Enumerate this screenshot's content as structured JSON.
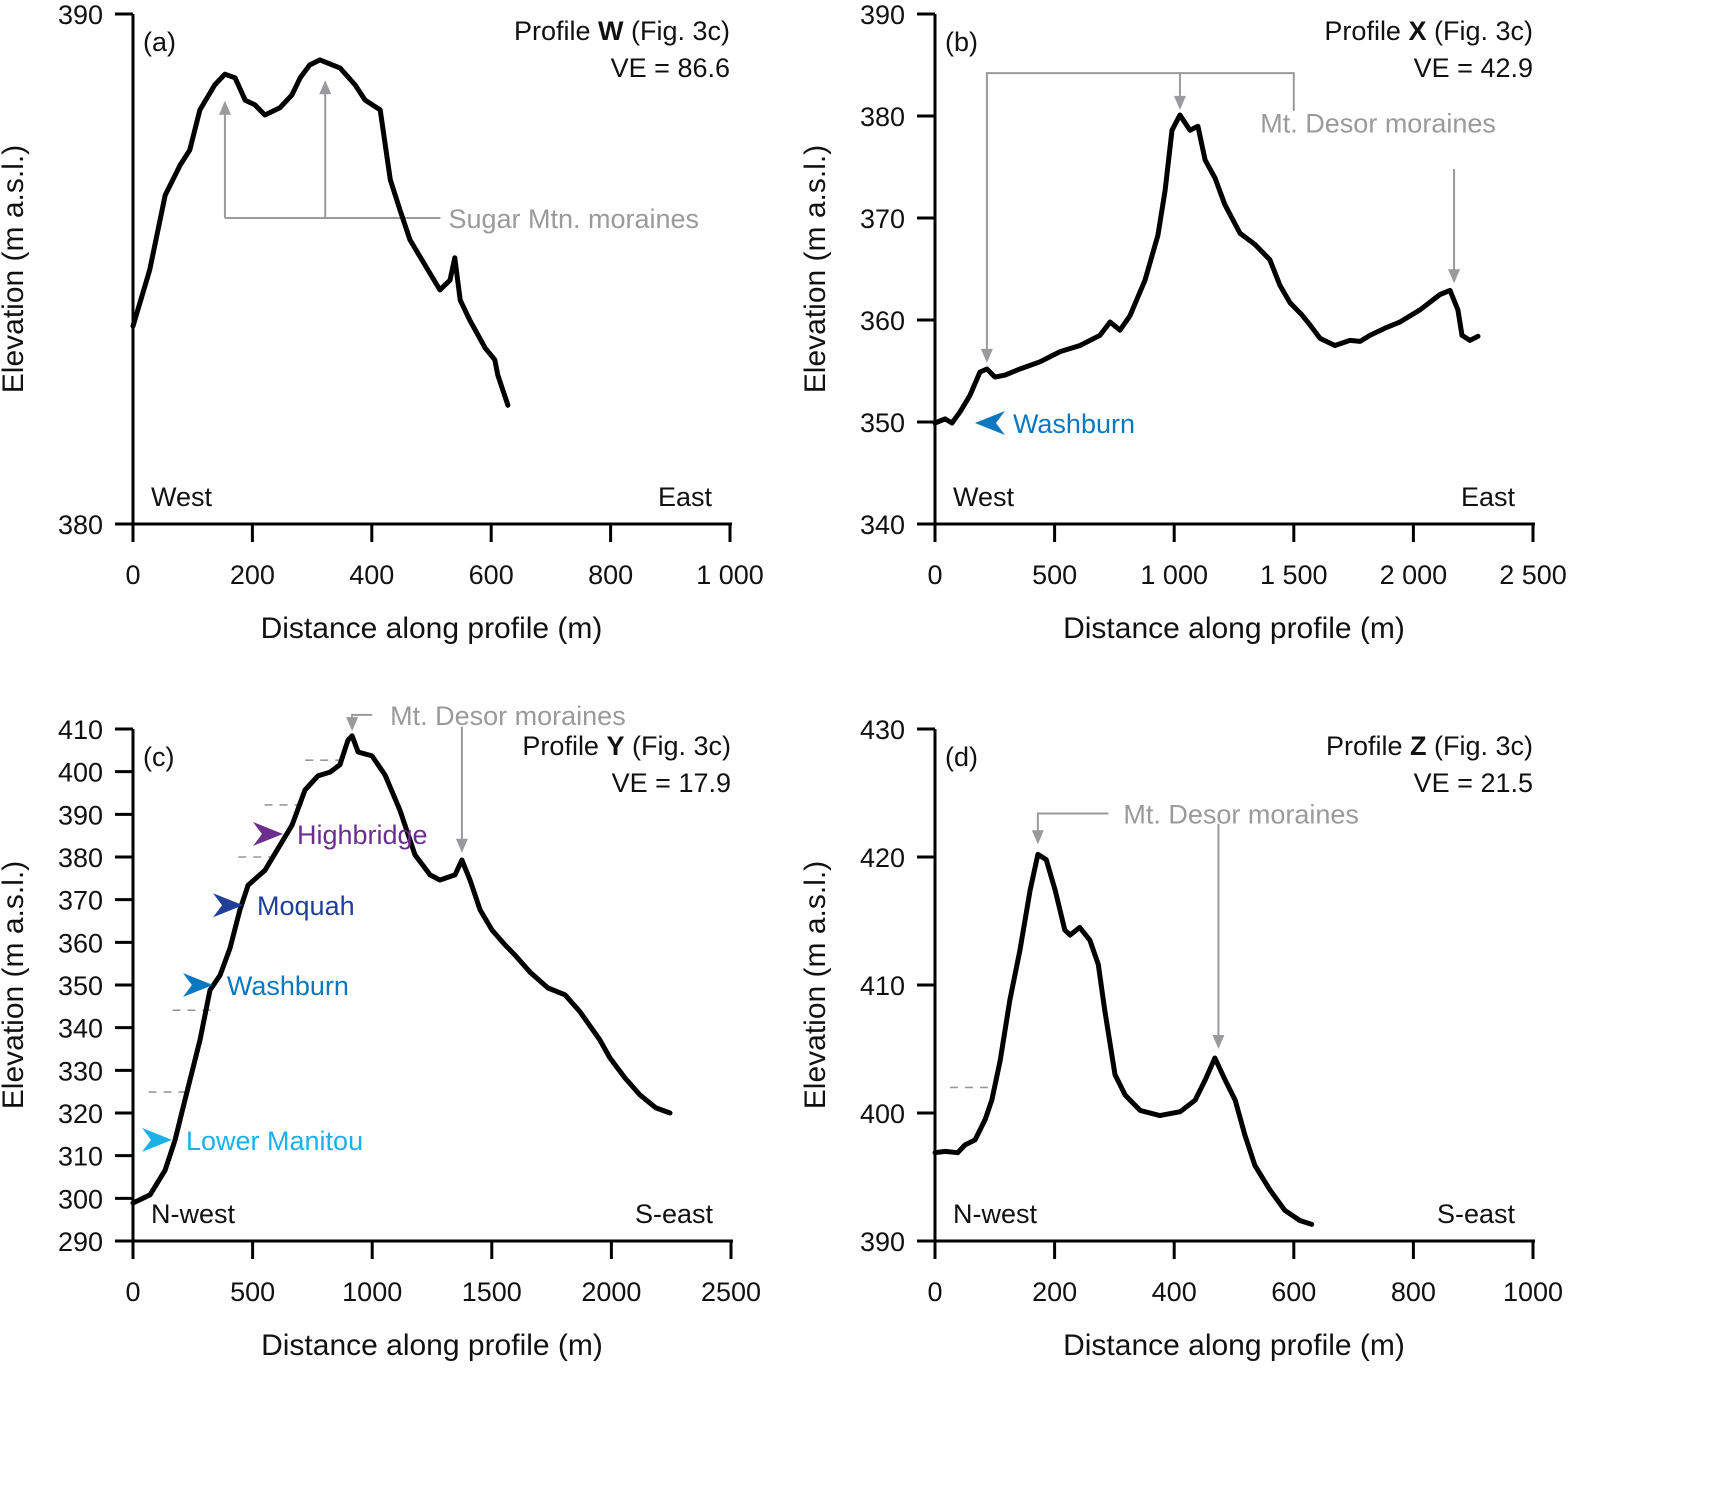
{
  "figure": {
    "colors": {
      "profile_line": "#000000",
      "annotation": "#9a9a9c",
      "dashed": "#9a9a9c",
      "lower_manitou": "#1ab0e8",
      "washburn": "#0a78c0",
      "moquah": "#1f3f99",
      "highbridge": "#6b2e8f"
    }
  },
  "chart_data": [
    {
      "type": "line",
      "panel_label": "(a)",
      "profile_prefix": "Profile ",
      "profile_id": "W",
      "profile_suffix": " (Fig. 3c)",
      "ve_text": "VE = 86.6",
      "xlabel": "Distance along profile (m)",
      "ylabel": "Elevation (m a.s.l.)",
      "xlim": [
        0,
        1000
      ],
      "ylim": [
        380,
        390
      ],
      "xticks": [
        0,
        200,
        400,
        600,
        800,
        1000
      ],
      "xtick_labels": [
        "0",
        "200",
        "400",
        "600",
        "800",
        "1 000"
      ],
      "yticks": [
        380,
        390
      ],
      "ytick_labels": [
        "380",
        "390"
      ],
      "direction_left": "West",
      "direction_right": "East",
      "grid": false,
      "series": [
        {
          "name": "Profile W",
          "x": [
            0,
            28,
            54,
            79,
            95,
            112,
            137,
            154,
            171,
            188,
            204,
            221,
            246,
            266,
            280,
            296,
            313,
            347,
            372,
            389,
            414,
            431,
            447,
            464,
            489,
            514,
            531,
            539,
            548,
            564,
            590,
            606,
            611,
            628
          ],
          "y": [
            383.88,
            384.98,
            386.45,
            387.04,
            387.33,
            388.12,
            388.61,
            388.82,
            388.75,
            388.31,
            388.22,
            388.02,
            388.16,
            388.41,
            388.75,
            389.0,
            389.1,
            388.94,
            388.61,
            388.31,
            388.12,
            386.75,
            386.16,
            385.57,
            385.08,
            384.59,
            384.78,
            385.22,
            384.39,
            384.0,
            383.45,
            383.22,
            382.92,
            382.33
          ]
        }
      ],
      "annotations": [
        {
          "text": "Sugar Mtn. moraines",
          "targets": [
            [
              154,
              388.3
            ],
            [
              322,
              388.7
            ]
          ],
          "bracket_y": 386.0
        }
      ],
      "markers": [],
      "dashed_levels": []
    },
    {
      "type": "line",
      "panel_label": "(b)",
      "profile_prefix": "Profile ",
      "profile_id": "X",
      "profile_suffix": " (Fig. 3c)",
      "ve_text": "VE = 42.9",
      "xlabel": "Distance along profile (m)",
      "ylabel": "Elevation (m a.s.l.)",
      "xlim": [
        0,
        2500
      ],
      "ylim": [
        340,
        390
      ],
      "xticks": [
        0,
        500,
        1000,
        1500,
        2000,
        2500
      ],
      "xtick_labels": [
        "0",
        "500",
        "1 000",
        "1 500",
        "2 000",
        "2 500"
      ],
      "yticks": [
        340,
        350,
        360,
        370,
        380,
        390
      ],
      "ytick_labels": [
        "340",
        "350",
        "360",
        "370",
        "380",
        "390"
      ],
      "direction_left": "West",
      "direction_right": "East",
      "grid": false,
      "series": [
        {
          "name": "Profile X",
          "x": [
            0,
            42,
            71,
            105,
            146,
            188,
            217,
            251,
            293,
            355,
            439,
            523,
            606,
            690,
            732,
            773,
            815,
            878,
            932,
            962,
            991,
            1024,
            1066,
            1099,
            1129,
            1171,
            1212,
            1275,
            1338,
            1400,
            1442,
            1484,
            1534,
            1568,
            1610,
            1672,
            1735,
            1777,
            1819,
            1881,
            1944,
            2028,
            2111,
            2153,
            2186,
            2203,
            2236,
            2270
          ],
          "y": [
            349.9,
            350.3,
            349.9,
            351.0,
            352.6,
            354.9,
            355.2,
            354.4,
            354.6,
            355.2,
            355.9,
            356.9,
            357.5,
            358.5,
            359.8,
            359.0,
            360.4,
            363.9,
            368.3,
            372.7,
            378.6,
            380.1,
            378.6,
            379.0,
            375.7,
            373.9,
            371.3,
            368.5,
            367.4,
            365.9,
            363.4,
            361.7,
            360.5,
            359.5,
            358.2,
            357.5,
            358.0,
            357.9,
            358.5,
            359.2,
            359.8,
            361.0,
            362.5,
            362.9,
            361.0,
            358.5,
            358.0,
            358.4
          ]
        }
      ],
      "annotations": [
        {
          "text": "Mt. Desor moraines",
          "targets": [
            [
              217,
              355.8
            ],
            [
              1024,
              380.6
            ],
            [
              2170,
              363.6
            ]
          ],
          "bracket_y": 384.2
        }
      ],
      "markers": [
        {
          "label": "Washburn",
          "x": 167,
          "y": 349.9,
          "direction": "left",
          "color_key": "washburn"
        }
      ],
      "dashed_levels": []
    },
    {
      "type": "line",
      "panel_label": "(c)",
      "profile_prefix": "Profile ",
      "profile_id": "Y",
      "profile_suffix": " (Fig. 3c)",
      "ve_text": "VE = 17.9",
      "xlabel": "Distance along profile (m)",
      "ylabel": "Elevation (m a.s.l.)",
      "xlim": [
        0,
        2500
      ],
      "ylim": [
        290,
        410
      ],
      "xticks": [
        0,
        500,
        1000,
        1500,
        2000,
        2500
      ],
      "xtick_labels": [
        "0",
        "500",
        "1000",
        "1500",
        "2000",
        "2500"
      ],
      "yticks": [
        290,
        300,
        310,
        320,
        330,
        340,
        350,
        360,
        370,
        380,
        390,
        400,
        410
      ],
      "ytick_labels": [
        "290",
        "300",
        "310",
        "320",
        "330",
        "340",
        "350",
        "360",
        "370",
        "380",
        "390",
        "400",
        "410"
      ],
      "direction_left": "N-west",
      "direction_right": "S-east",
      "grid": false,
      "series": [
        {
          "name": "Profile Y",
          "x": [
            0,
            71,
            134,
            176,
            217,
            280,
            322,
            364,
            406,
            447,
            481,
            552,
            615,
            665,
            719,
            773,
            824,
            865,
            899,
            916,
            941,
            999,
            1054,
            1116,
            1179,
            1242,
            1283,
            1346,
            1375,
            1409,
            1451,
            1501,
            1555,
            1597,
            1660,
            1735,
            1806,
            1869,
            1952,
            1994,
            2057,
            2120,
            2186,
            2245
          ],
          "y": [
            298.9,
            300.8,
            306.6,
            313.7,
            323.0,
            337.1,
            348.8,
            352.3,
            358.7,
            367.6,
            373.4,
            376.9,
            382.8,
            387.5,
            395.7,
            399.0,
            399.9,
            401.6,
            407.4,
            408.4,
            404.6,
            403.7,
            399.2,
            391.0,
            380.5,
            375.8,
            374.6,
            375.8,
            379.3,
            374.6,
            367.6,
            362.9,
            359.4,
            357.0,
            353.0,
            349.3,
            347.7,
            343.7,
            337.1,
            332.9,
            328.2,
            324.2,
            321.2,
            320.0
          ]
        }
      ],
      "annotations": [
        {
          "text": "Mt. Desor moraines",
          "targets": [
            [
              916,
              409.5
            ],
            [
              1375,
              381.0
            ]
          ],
          "bracket_y": 413.3
        }
      ],
      "markers": [
        {
          "label": "Highbridge",
          "x": 627,
          "y": 385.4,
          "direction": "right",
          "color_key": "highbridge"
        },
        {
          "label": "Moquah",
          "x": 460,
          "y": 368.7,
          "direction": "right",
          "color_key": "moquah"
        },
        {
          "label": "Washburn",
          "x": 334,
          "y": 350.0,
          "direction": "right",
          "color_key": "washburn"
        },
        {
          "label": "Lower Manitou",
          "x": 163,
          "y": 313.7,
          "direction": "right",
          "color_key": "lower_manitou"
        }
      ],
      "dashed_levels": [
        {
          "y": 402.7,
          "x0": 720,
          "x1": 890
        },
        {
          "y": 392.2,
          "x0": 550,
          "x1": 720
        },
        {
          "y": 380.0,
          "x0": 440,
          "x1": 590
        },
        {
          "y": 344.1,
          "x0": 165,
          "x1": 330
        },
        {
          "y": 324.9,
          "x0": 65,
          "x1": 220
        }
      ]
    },
    {
      "type": "line",
      "panel_label": "(d)",
      "profile_prefix": "Profile ",
      "profile_id": "Z",
      "profile_suffix": " (Fig. 3c)",
      "ve_text": "VE = 21.5",
      "xlabel": "Distance along profile (m)",
      "ylabel": "Elevation (m a.s.l.)",
      "xlim": [
        0,
        1000
      ],
      "ylim": [
        390,
        430
      ],
      "xticks": [
        0,
        200,
        400,
        600,
        800,
        1000
      ],
      "xtick_labels": [
        "0",
        "200",
        "400",
        "600",
        "800",
        "1000"
      ],
      "yticks": [
        390,
        400,
        410,
        420,
        430
      ],
      "ytick_labels": [
        "390",
        "400",
        "410",
        "420",
        "430"
      ],
      "direction_left": "N-west",
      "direction_right": "S-east",
      "grid": false,
      "series": [
        {
          "name": "Profile Z",
          "x": [
            0,
            17,
            38,
            50,
            67,
            84,
            95,
            109,
            125,
            142,
            159,
            172,
            186,
            201,
            217,
            226,
            242,
            259,
            273,
            284,
            301,
            318,
            343,
            376,
            410,
            435,
            452,
            468,
            485,
            502,
            518,
            535,
            560,
            585,
            610,
            630
          ],
          "y": [
            396.9,
            397.0,
            396.9,
            397.5,
            397.9,
            399.5,
            401.0,
            404.1,
            408.8,
            412.7,
            417.4,
            420.2,
            419.8,
            417.4,
            414.3,
            413.9,
            414.5,
            413.5,
            411.6,
            408.0,
            403.0,
            401.4,
            400.2,
            399.8,
            400.1,
            401.0,
            402.6,
            404.3,
            402.6,
            401.0,
            398.3,
            395.9,
            394.0,
            392.4,
            391.6,
            391.3
          ]
        }
      ],
      "annotations": [
        {
          "text": "Mt. Desor moraines",
          "targets": [
            [
              172,
              421.0
            ],
            [
              474,
              405.0
            ]
          ],
          "bracket_y": 423.4
        }
      ],
      "markers": [],
      "dashed_levels": [
        {
          "y": 402.0,
          "x0": 25,
          "x1": 92
        }
      ]
    }
  ]
}
